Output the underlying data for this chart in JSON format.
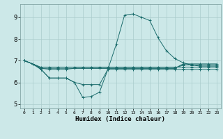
{
  "xlabel": "Humidex (Indice chaleur)",
  "background_color": "#cce8e8",
  "line_color": "#1a6b6b",
  "grid_color": "#aacccc",
  "xlim": [
    -0.5,
    23.5
  ],
  "ylim": [
    4.8,
    9.6
  ],
  "yticks": [
    5,
    6,
    7,
    8,
    9
  ],
  "xticks": [
    0,
    1,
    2,
    3,
    4,
    5,
    6,
    7,
    8,
    9,
    10,
    11,
    12,
    13,
    14,
    15,
    16,
    17,
    18,
    19,
    20,
    21,
    22,
    23
  ],
  "series": [
    {
      "x": [
        0,
        1,
        2,
        3,
        4,
        5,
        6,
        7,
        8,
        9,
        10,
        11,
        12,
        13,
        14,
        15,
        16,
        17,
        18,
        19,
        20,
        21,
        22,
        23
      ],
      "y": [
        7.0,
        6.85,
        6.7,
        6.7,
        6.7,
        6.7,
        6.7,
        6.7,
        6.7,
        6.7,
        6.7,
        6.7,
        6.7,
        6.7,
        6.7,
        6.7,
        6.7,
        6.7,
        6.7,
        6.7,
        6.7,
        6.7,
        6.7,
        6.7
      ]
    },
    {
      "x": [
        0,
        1,
        2,
        3,
        4,
        5,
        6,
        7,
        8,
        9,
        10,
        11,
        12,
        13,
        14,
        15,
        16,
        17,
        18,
        19,
        20,
        21,
        22,
        23
      ],
      "y": [
        7.0,
        6.85,
        6.65,
        6.65,
        6.65,
        6.65,
        6.65,
        6.65,
        6.65,
        6.65,
        6.65,
        6.65,
        6.65,
        6.65,
        6.65,
        6.65,
        6.65,
        6.65,
        6.65,
        6.8,
        6.8,
        6.8,
        6.8,
        6.8
      ]
    },
    {
      "x": [
        0,
        1,
        2,
        3,
        4,
        5,
        6,
        7,
        8,
        9,
        10,
        11,
        12,
        13,
        14,
        15,
        16,
        17,
        18,
        19,
        20,
        21,
        22,
        23
      ],
      "y": [
        7.0,
        6.85,
        6.6,
        6.2,
        6.2,
        6.2,
        6.0,
        5.9,
        5.9,
        5.9,
        6.6,
        6.6,
        6.6,
        6.6,
        6.6,
        6.6,
        6.6,
        6.6,
        6.6,
        6.6,
        6.6,
        6.6,
        6.6,
        6.6
      ]
    },
    {
      "x": [
        0,
        1,
        2,
        3,
        4,
        5,
        6,
        7,
        8,
        9,
        10,
        11,
        12,
        13,
        14,
        15,
        16,
        17,
        18,
        19,
        20,
        21,
        22,
        23
      ],
      "y": [
        7.0,
        6.85,
        6.6,
        6.2,
        6.2,
        6.2,
        6.0,
        5.3,
        5.35,
        5.55,
        6.6,
        7.75,
        9.1,
        9.15,
        9.0,
        8.85,
        8.05,
        7.45,
        7.1,
        6.9,
        6.8,
        6.75,
        6.75,
        6.75
      ]
    },
    {
      "x": [
        0,
        1,
        2,
        3,
        4,
        5,
        6,
        7,
        8,
        9,
        10,
        11,
        12,
        13,
        14,
        15,
        16,
        17,
        18,
        19,
        20,
        21,
        22,
        23
      ],
      "y": [
        7.0,
        6.85,
        6.65,
        6.6,
        6.6,
        6.6,
        6.65,
        6.65,
        6.65,
        6.65,
        6.65,
        6.65,
        6.65,
        6.65,
        6.65,
        6.65,
        6.65,
        6.65,
        6.65,
        6.85,
        6.85,
        6.85,
        6.85,
        6.85
      ]
    }
  ]
}
